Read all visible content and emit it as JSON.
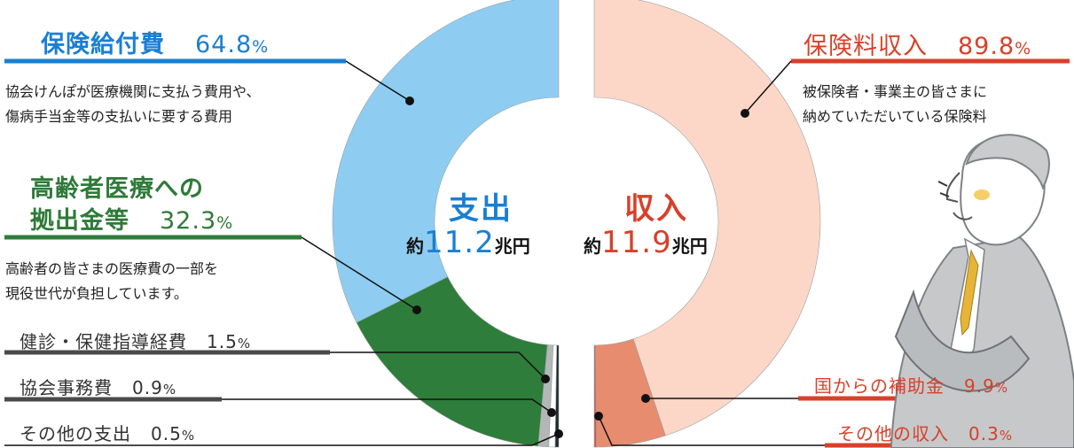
{
  "chart_data": [
    {
      "type": "pie",
      "title": "支出",
      "amount_prefix": "約",
      "amount_value": "11.2",
      "amount_unit": "兆円",
      "slices": [
        {
          "label": "保険給付費",
          "value": 64.8,
          "value_text": "64.8",
          "color": "#8ecdf1",
          "desc_lines": [
            "協会けんぽが医療機関に支払う費用や、",
            "傷病手当金等の支払いに要する費用"
          ]
        },
        {
          "label": "高齢者医療への拠出金等",
          "label_lines": [
            "高齢者医療への",
            "拠出金等"
          ],
          "value": 32.3,
          "value_text": "32.3",
          "color": "#2e7d3a",
          "desc_lines": [
            "高齢者の皆さまの医療費の一部を",
            "現役世代が負担しています。"
          ]
        },
        {
          "label": "健診・保健指導経費",
          "value": 1.5,
          "value_text": "1.5",
          "color": "#b3b7b8"
        },
        {
          "label": "協会事務費",
          "value": 0.9,
          "value_text": "0.9",
          "color": "#ffffff"
        },
        {
          "label": "その他の支出",
          "value": 0.5,
          "value_text": "0.5",
          "color": "#1f2a2c"
        }
      ]
    },
    {
      "type": "pie",
      "title": "収入",
      "amount_prefix": "約",
      "amount_value": "11.9",
      "amount_unit": "兆円",
      "slices": [
        {
          "label": "保険料収入",
          "value": 89.8,
          "value_text": "89.8",
          "color": "#fcd7c7",
          "desc_lines": [
            "被保険者・事業主の皆さまに",
            "納めていただいている保険料"
          ]
        },
        {
          "label": "国からの補助金",
          "value": 9.9,
          "value_text": "9.9",
          "color": "#e78c6f"
        },
        {
          "label": "その他の収入",
          "value": 0.3,
          "value_text": "0.3",
          "color": "#c9584a"
        }
      ]
    }
  ],
  "percent_sign": "%",
  "colors": {
    "expense_title": "#1a7fd2",
    "income_title": "#d8402a",
    "ins_benefit_line": "#1a7fd2",
    "elderly_line": "#2e7d3a",
    "gray_line": "#4a4a4a",
    "income_line": "#d8402a"
  }
}
